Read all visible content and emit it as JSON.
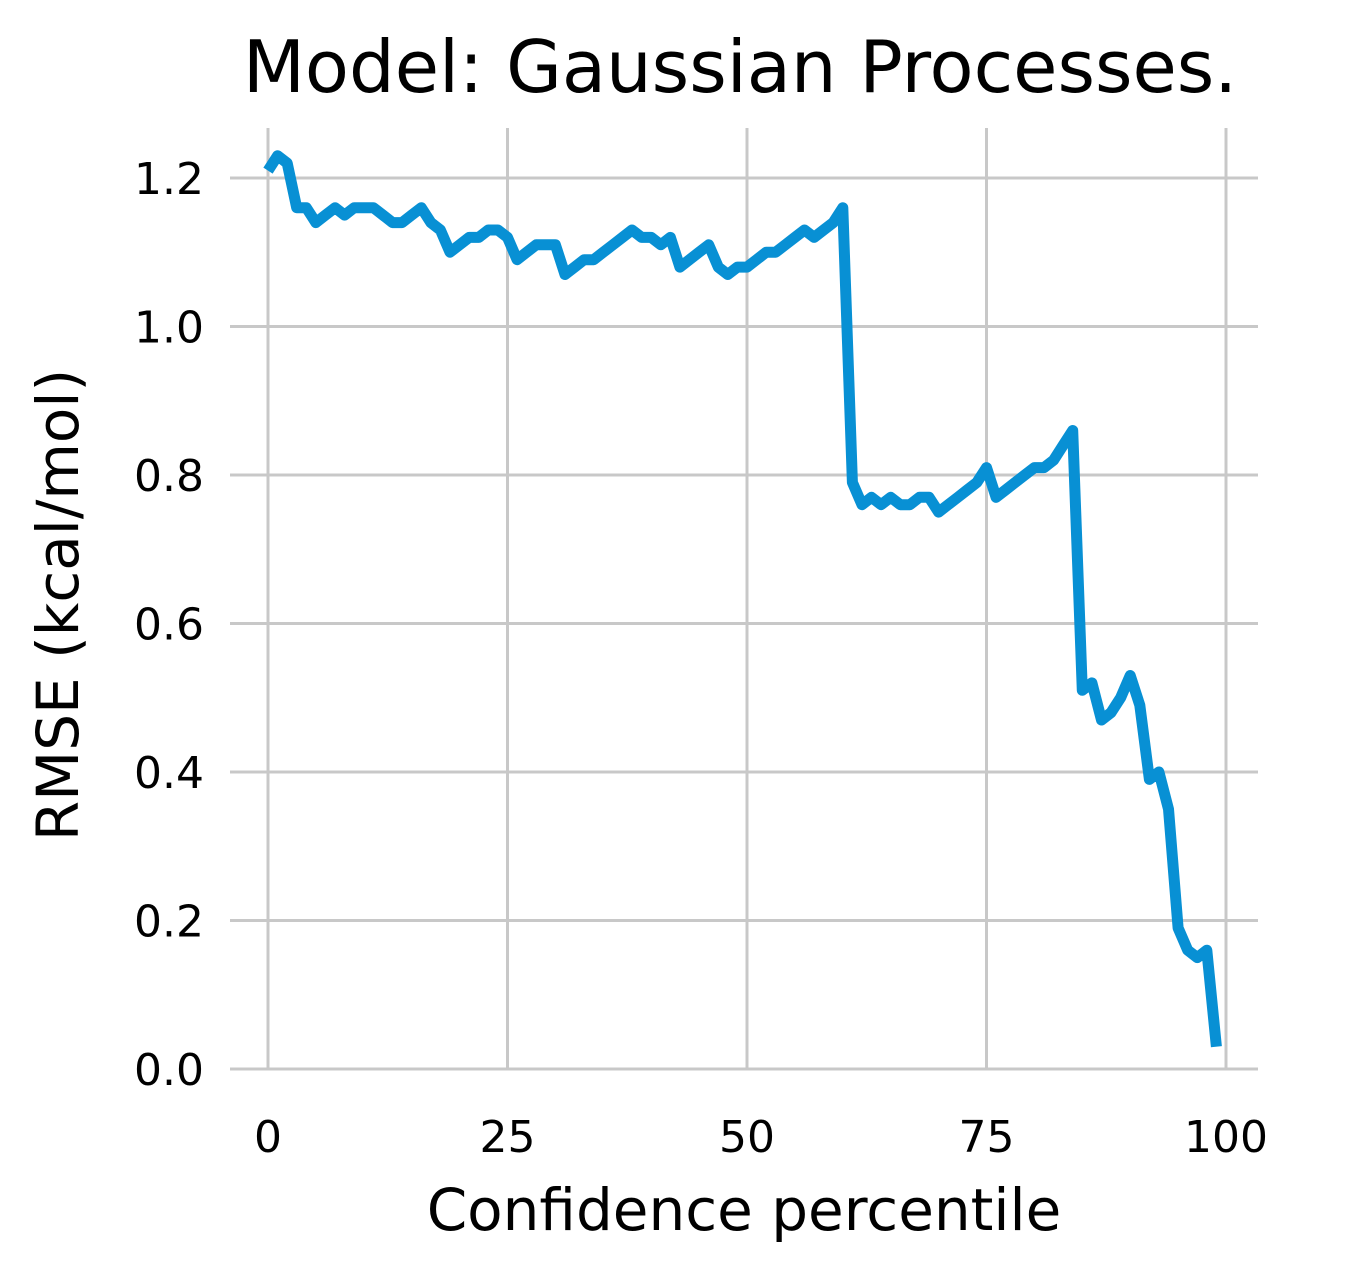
{
  "chart_data": {
    "type": "line",
    "title": "Model: Gaussian Processes.",
    "xlabel": "Confidence percentile",
    "ylabel": "RMSE (kcal/mol)",
    "xlim": [
      -4,
      103
    ],
    "ylim": [
      0.0,
      1.27
    ],
    "xticks": [
      0,
      25,
      50,
      75,
      100
    ],
    "xtick_labels": [
      "0",
      "25",
      "50",
      "75",
      "100"
    ],
    "yticks": [
      0.0,
      0.2,
      0.4,
      0.6,
      0.8,
      1.0,
      1.2
    ],
    "ytick_labels": [
      "0.0",
      "0.2",
      "0.4",
      "0.6",
      "0.8",
      "1.0",
      "1.2"
    ],
    "grid": true,
    "line_color": "#0890d4",
    "series": [
      {
        "x": [
          0,
          1,
          2,
          3,
          4,
          5,
          6,
          7,
          8,
          9,
          10,
          11,
          12,
          13,
          14,
          15,
          16,
          17,
          18,
          19,
          20,
          21,
          22,
          23,
          24,
          25,
          26,
          27,
          28,
          29,
          30,
          31,
          32,
          33,
          34,
          35,
          36,
          37,
          38,
          39,
          40,
          41,
          42,
          43,
          44,
          45,
          46,
          47,
          48,
          49,
          50,
          51,
          52,
          53,
          54,
          55,
          56,
          57,
          58,
          59,
          60,
          61,
          62,
          63,
          64,
          65,
          66,
          67,
          68,
          69,
          70,
          71,
          72,
          73,
          74,
          75,
          76,
          77,
          78,
          79,
          80,
          81,
          82,
          83,
          84,
          85,
          86,
          87,
          88,
          89,
          90,
          91,
          92,
          93,
          94,
          95,
          96,
          97,
          98,
          99
        ],
        "y": [
          1.21,
          1.23,
          1.22,
          1.16,
          1.16,
          1.14,
          1.15,
          1.16,
          1.15,
          1.16,
          1.16,
          1.16,
          1.15,
          1.14,
          1.14,
          1.15,
          1.16,
          1.14,
          1.13,
          1.1,
          1.11,
          1.12,
          1.12,
          1.13,
          1.13,
          1.12,
          1.09,
          1.1,
          1.11,
          1.11,
          1.11,
          1.07,
          1.08,
          1.09,
          1.09,
          1.1,
          1.11,
          1.12,
          1.13,
          1.12,
          1.12,
          1.11,
          1.12,
          1.08,
          1.09,
          1.1,
          1.11,
          1.08,
          1.07,
          1.08,
          1.08,
          1.09,
          1.1,
          1.1,
          1.11,
          1.12,
          1.13,
          1.12,
          1.13,
          1.14,
          1.16,
          0.79,
          0.76,
          0.77,
          0.76,
          0.77,
          0.76,
          0.76,
          0.77,
          0.77,
          0.75,
          0.76,
          0.77,
          0.78,
          0.79,
          0.81,
          0.77,
          0.78,
          0.79,
          0.8,
          0.81,
          0.81,
          0.82,
          0.84,
          0.86,
          0.51,
          0.52,
          0.47,
          0.48,
          0.5,
          0.53,
          0.49,
          0.39,
          0.4,
          0.35,
          0.19,
          0.16,
          0.15,
          0.16,
          0.03
        ]
      }
    ]
  }
}
